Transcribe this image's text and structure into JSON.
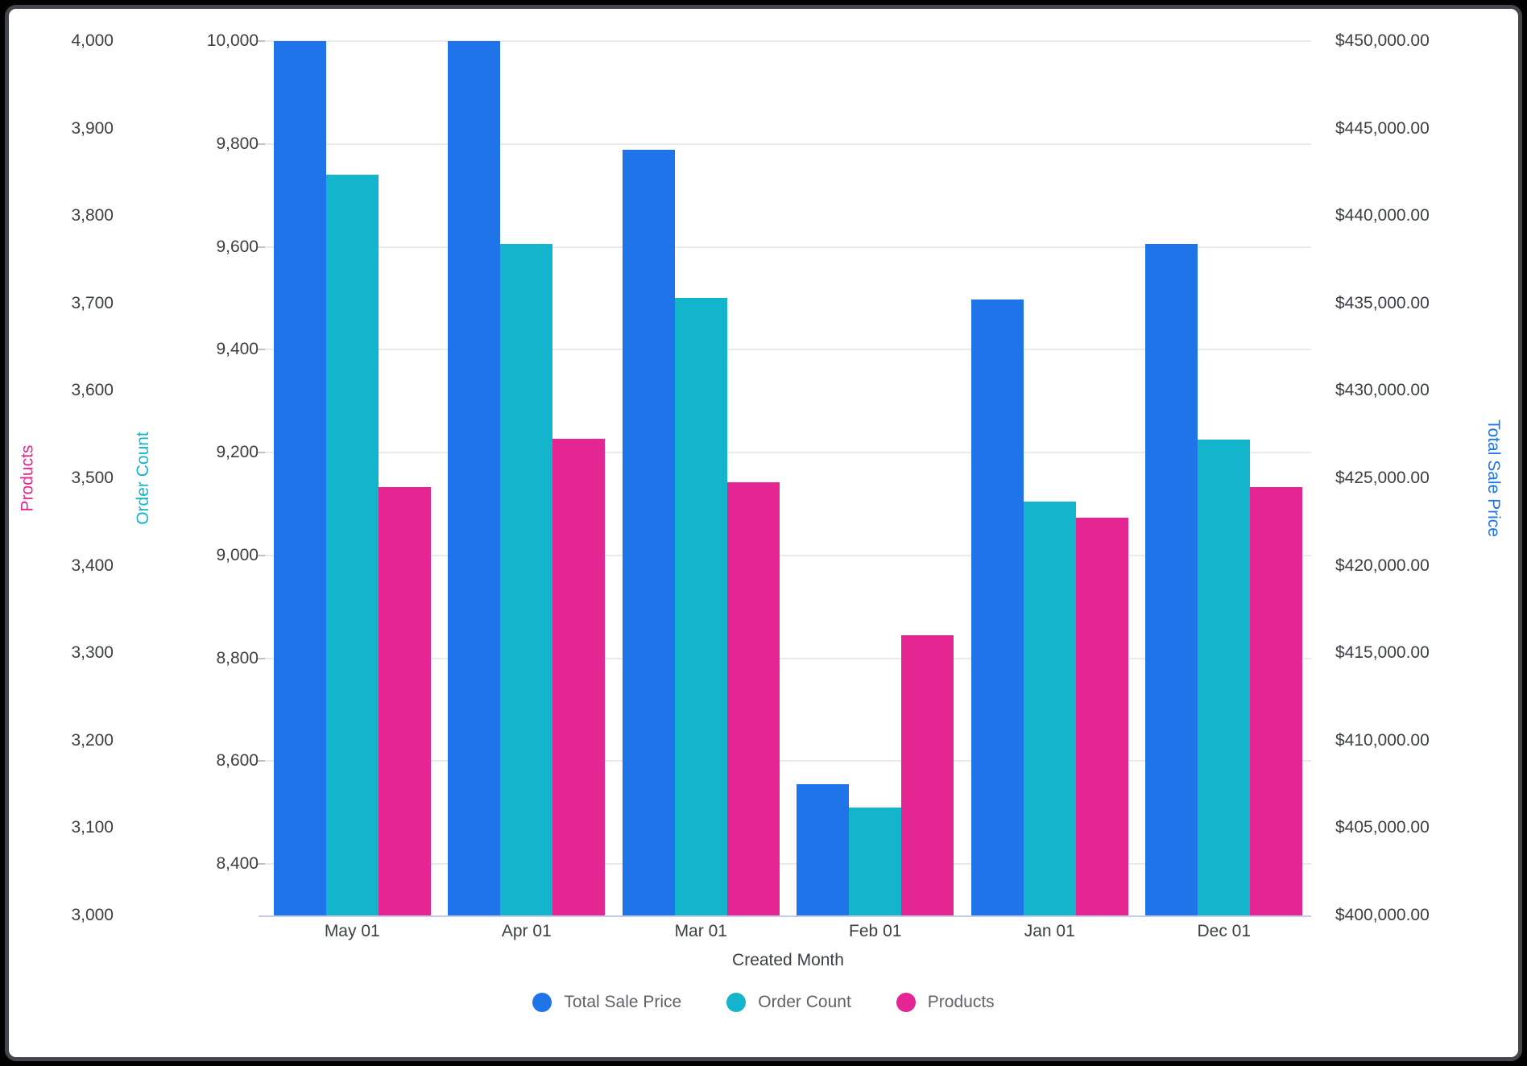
{
  "chart_data": {
    "type": "bar",
    "x_axis": {
      "label": "Created Month",
      "categories": [
        "May 01",
        "Apr 01",
        "Mar 01",
        "Feb 01",
        "Jan 01",
        "Dec 01"
      ]
    },
    "series": [
      {
        "name": "Total Sale Price",
        "axis": "dollars",
        "color": "#1E74E8",
        "values": [
          450000,
          450000,
          443800,
          407500,
          435200,
          438400
        ]
      },
      {
        "name": "Order Count",
        "axis": "order",
        "color": "#12B5CB",
        "values": [
          9740,
          9605,
          9500,
          8510,
          9105,
          9225
        ]
      },
      {
        "name": "Products",
        "axis": "products",
        "color": "#E52592",
        "values": [
          3490,
          3545,
          3495,
          3320,
          3455,
          3490
        ]
      }
    ],
    "axes": {
      "products": {
        "title": "Products",
        "color": "#E52592",
        "side": "left-outer",
        "min": 3000,
        "max": 4000,
        "ticks": [
          {
            "v": 4000,
            "label": "4,000"
          },
          {
            "v": 3900,
            "label": "3,900"
          },
          {
            "v": 3800,
            "label": "3,800"
          },
          {
            "v": 3700,
            "label": "3,700"
          },
          {
            "v": 3600,
            "label": "3,600"
          },
          {
            "v": 3500,
            "label": "3,500"
          },
          {
            "v": 3400,
            "label": "3,400"
          },
          {
            "v": 3300,
            "label": "3,300"
          },
          {
            "v": 3200,
            "label": "3,200"
          },
          {
            "v": 3100,
            "label": "3,100"
          },
          {
            "v": 3000,
            "label": "3,000"
          }
        ]
      },
      "order": {
        "title": "Order Count",
        "color": "#12B5CB",
        "side": "left-inner",
        "min": 8300,
        "max": 10000,
        "gridlines": true,
        "ticks": [
          {
            "v": 10000,
            "label": "10,000"
          },
          {
            "v": 9800,
            "label": "9,800"
          },
          {
            "v": 9600,
            "label": "9,600"
          },
          {
            "v": 9400,
            "label": "9,400"
          },
          {
            "v": 9200,
            "label": "9,200"
          },
          {
            "v": 9000,
            "label": "9,000"
          },
          {
            "v": 8800,
            "label": "8,800"
          },
          {
            "v": 8600,
            "label": "8,600"
          },
          {
            "v": 8400,
            "label": "8,400"
          }
        ]
      },
      "dollars": {
        "title": "Total Sale Price",
        "color": "#1E74E8",
        "side": "right",
        "min": 400000,
        "max": 450000,
        "ticks": [
          {
            "v": 450000,
            "label": "$450,000.00"
          },
          {
            "v": 445000,
            "label": "$445,000.00"
          },
          {
            "v": 440000,
            "label": "$440,000.00"
          },
          {
            "v": 435000,
            "label": "$435,000.00"
          },
          {
            "v": 430000,
            "label": "$430,000.00"
          },
          {
            "v": 425000,
            "label": "$425,000.00"
          },
          {
            "v": 420000,
            "label": "$420,000.00"
          },
          {
            "v": 415000,
            "label": "$415,000.00"
          },
          {
            "v": 410000,
            "label": "$410,000.00"
          },
          {
            "v": 405000,
            "label": "$405,000.00"
          },
          {
            "v": 400000,
            "label": "$400,000.00"
          }
        ]
      }
    },
    "legend": [
      "Total Sale Price",
      "Order Count",
      "Products"
    ],
    "layout": {
      "grid_on": true,
      "legend_position": "bottom"
    }
  }
}
